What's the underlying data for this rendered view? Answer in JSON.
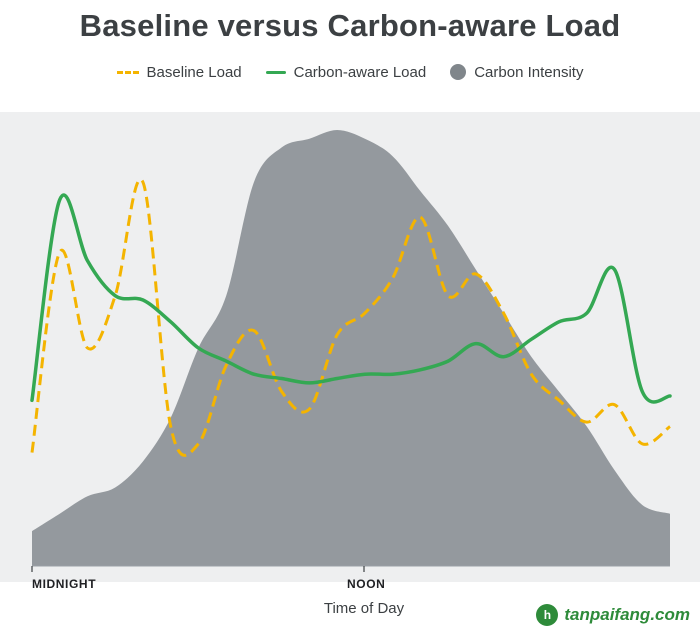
{
  "chart_data": {
    "type": "line",
    "title": "Baseline versus Carbon-aware Load",
    "xlabel": "Time of Day",
    "ylabel": "",
    "x_ticks": [
      "MIDNIGHT",
      "NOON"
    ],
    "xlim": [
      0,
      23
    ],
    "ylim": [
      0,
      100
    ],
    "grid": false,
    "legend_position": "top",
    "series": [
      {
        "name": "Baseline Load",
        "style": "dashed",
        "color": "#f4b400",
        "x": [
          0,
          1,
          2,
          3,
          4,
          5,
          6,
          7,
          8,
          9,
          10,
          11,
          12,
          13,
          14,
          15,
          16,
          17,
          18,
          19,
          20,
          21,
          22,
          23
        ],
        "y": [
          26,
          72,
          50,
          62,
          88,
          32,
          28,
          46,
          54,
          40,
          36,
          53,
          58,
          66,
          80,
          62,
          67,
          58,
          44,
          38,
          33,
          37,
          28,
          32
        ]
      },
      {
        "name": "Carbon-aware Load",
        "style": "solid",
        "color": "#34a853",
        "x": [
          0,
          1,
          2,
          3,
          4,
          5,
          6,
          7,
          8,
          9,
          10,
          11,
          12,
          13,
          14,
          15,
          16,
          17,
          18,
          19,
          20,
          21,
          22,
          23
        ],
        "y": [
          38,
          84,
          70,
          62,
          61,
          56,
          50,
          47,
          44,
          43,
          42,
          43,
          44,
          44,
          45,
          47,
          51,
          48,
          52,
          56,
          58,
          68,
          40,
          39
        ]
      },
      {
        "name": "Carbon Intensity",
        "style": "area",
        "color": "#80868b",
        "x": [
          0,
          1,
          2,
          3,
          4,
          5,
          6,
          7,
          8,
          9,
          10,
          11,
          12,
          13,
          14,
          15,
          16,
          17,
          18,
          19,
          20,
          21,
          22,
          23
        ],
        "y": [
          8,
          12,
          16,
          18,
          24,
          34,
          50,
          62,
          88,
          96,
          98,
          100,
          98,
          94,
          86,
          78,
          68,
          58,
          48,
          40,
          32,
          22,
          14,
          12
        ]
      }
    ]
  },
  "watermark": {
    "logo_text": "h",
    "text": "tanpaifang.com",
    "color": "#2e8b3a"
  }
}
